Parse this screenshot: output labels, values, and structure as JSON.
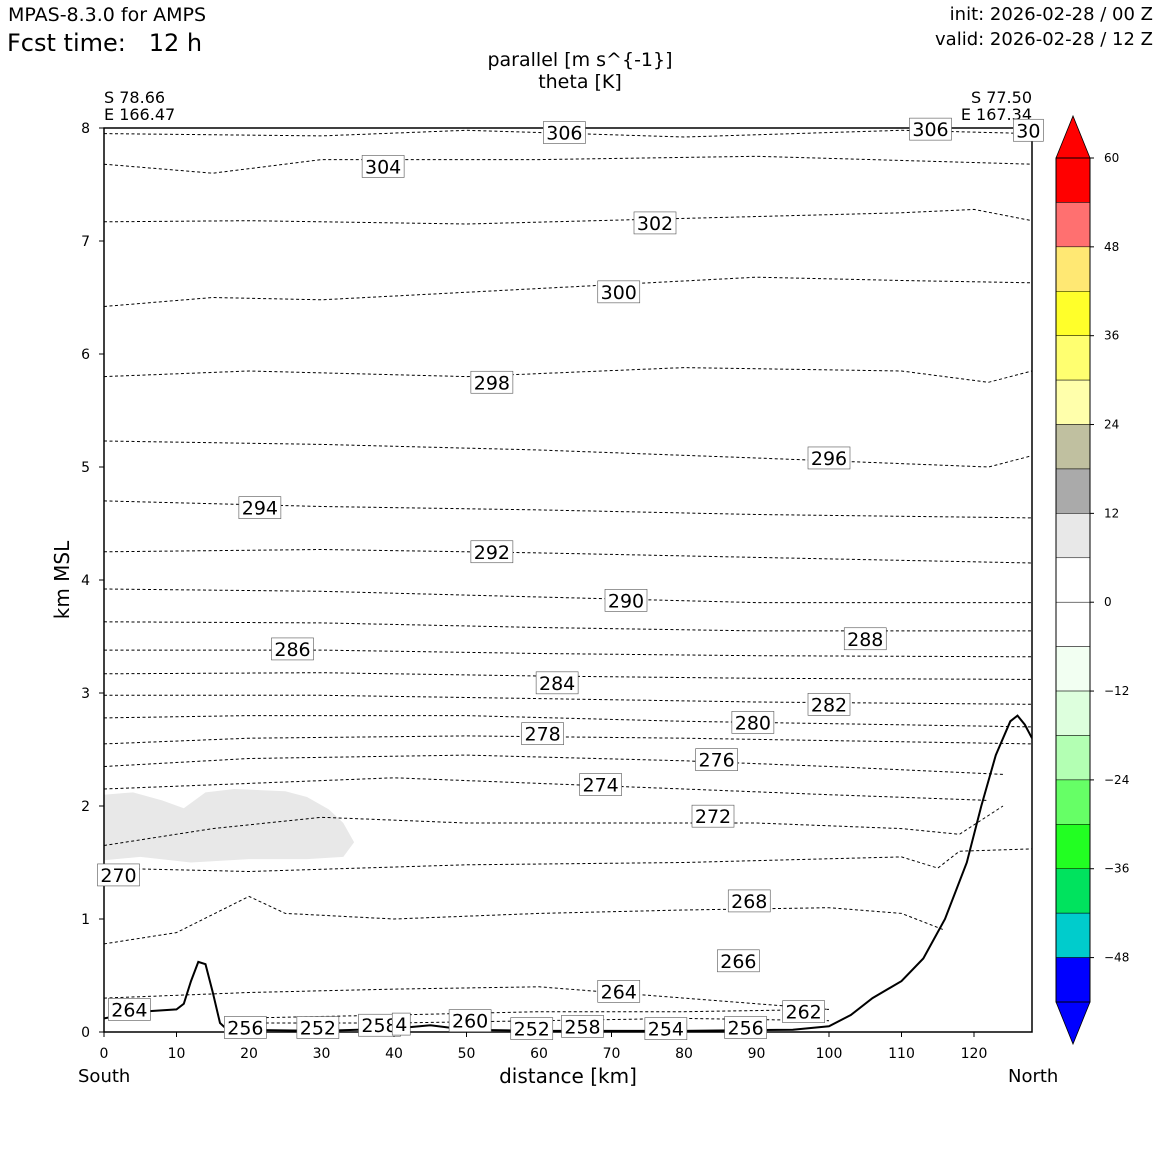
{
  "header": {
    "model": "MPAS-8.3.0 for AMPS",
    "fcst_label": "Fcst time:   12 h",
    "init": "init: 2026-02-28 / 00 Z",
    "valid": "valid: 2026-02-28 / 12 Z"
  },
  "cross_section": {
    "start": {
      "lat": "S 78.66",
      "lon": "E 166.47"
    },
    "end": {
      "lat": "S 77.50",
      "lon": "E 167.34"
    },
    "start_dir": "South",
    "end_dir": "North"
  },
  "colors": {
    "terrain": "#000000",
    "isentrope": "#000000",
    "shade_light": "#e8e8e8"
  },
  "chart_data": {
    "type": "contour",
    "title": "parallel [m s^{-1}]",
    "subtitle": "theta [K]",
    "xlabel": "distance [km]",
    "ylabel": "km MSL",
    "xlim": [
      0,
      128
    ],
    "ylim": [
      0,
      8
    ],
    "xticks": [
      0,
      10,
      20,
      30,
      40,
      50,
      60,
      70,
      80,
      90,
      100,
      110,
      120
    ],
    "yticks": [
      0,
      1,
      2,
      3,
      4,
      5,
      6,
      7,
      8
    ],
    "terrain": [
      [
        0,
        0.12
      ],
      [
        5,
        0.18
      ],
      [
        10,
        0.2
      ],
      [
        11,
        0.25
      ],
      [
        12,
        0.45
      ],
      [
        13,
        0.62
      ],
      [
        14,
        0.6
      ],
      [
        15,
        0.35
      ],
      [
        16,
        0.08
      ],
      [
        17,
        0.02
      ],
      [
        30,
        0.01
      ],
      [
        40,
        0.03
      ],
      [
        45,
        0.06
      ],
      [
        50,
        0.02
      ],
      [
        60,
        0.01
      ],
      [
        80,
        0.01
      ],
      [
        95,
        0.02
      ],
      [
        100,
        0.05
      ],
      [
        103,
        0.15
      ],
      [
        106,
        0.3
      ],
      [
        110,
        0.45
      ],
      [
        113,
        0.65
      ],
      [
        116,
        1.0
      ],
      [
        119,
        1.5
      ],
      [
        121,
        2.0
      ],
      [
        123,
        2.45
      ],
      [
        125,
        2.75
      ],
      [
        126,
        2.8
      ],
      [
        127,
        2.72
      ],
      [
        128,
        2.6
      ]
    ],
    "shaded_region": {
      "label": "12",
      "points": [
        [
          0,
          2.1
        ],
        [
          4,
          2.12
        ],
        [
          8,
          2.05
        ],
        [
          11,
          1.98
        ],
        [
          14,
          2.12
        ],
        [
          18,
          2.15
        ],
        [
          25,
          2.13
        ],
        [
          28,
          2.08
        ],
        [
          31,
          1.97
        ],
        [
          33,
          1.85
        ],
        [
          34.5,
          1.68
        ],
        [
          33,
          1.55
        ],
        [
          28,
          1.53
        ],
        [
          20,
          1.53
        ],
        [
          12,
          1.5
        ],
        [
          5,
          1.55
        ],
        [
          0,
          1.52
        ]
      ]
    },
    "isentropes": [
      {
        "theta": 270,
        "profile": [
          [
            0,
            1.45
          ],
          [
            20,
            1.42
          ],
          [
            50,
            1.48
          ],
          [
            80,
            1.5
          ],
          [
            110,
            1.55
          ],
          [
            115,
            1.45
          ],
          [
            118,
            1.6
          ],
          [
            128,
            1.62
          ]
        ]
      },
      {
        "theta": 268,
        "profile": [
          [
            0,
            0.78
          ],
          [
            10,
            0.88
          ],
          [
            20,
            1.2
          ],
          [
            25,
            1.05
          ],
          [
            40,
            1.0
          ],
          [
            60,
            1.05
          ],
          [
            80,
            1.08
          ],
          [
            100,
            1.1
          ],
          [
            110,
            1.05
          ],
          [
            116,
            0.9
          ]
        ]
      },
      {
        "theta": 264,
        "profile": [
          [
            0,
            0.3
          ],
          [
            20,
            0.35
          ],
          [
            40,
            0.38
          ],
          [
            60,
            0.4
          ],
          [
            80,
            0.3
          ],
          [
            100,
            0.2
          ]
        ]
      },
      {
        "theta": 272,
        "profile": [
          [
            0,
            1.65
          ],
          [
            15,
            1.8
          ],
          [
            30,
            1.9
          ],
          [
            50,
            1.85
          ],
          [
            70,
            1.85
          ],
          [
            90,
            1.85
          ],
          [
            110,
            1.8
          ],
          [
            118,
            1.75
          ],
          [
            124,
            2.0
          ]
        ]
      },
      {
        "theta": 274,
        "profile": [
          [
            0,
            2.15
          ],
          [
            20,
            2.2
          ],
          [
            40,
            2.25
          ],
          [
            60,
            2.2
          ],
          [
            80,
            2.15
          ],
          [
            100,
            2.1
          ],
          [
            122,
            2.05
          ]
        ]
      },
      {
        "theta": 276,
        "profile": [
          [
            0,
            2.35
          ],
          [
            20,
            2.42
          ],
          [
            50,
            2.45
          ],
          [
            80,
            2.4
          ],
          [
            100,
            2.35
          ],
          [
            124,
            2.28
          ]
        ]
      },
      {
        "theta": 278,
        "profile": [
          [
            0,
            2.55
          ],
          [
            20,
            2.6
          ],
          [
            50,
            2.62
          ],
          [
            80,
            2.6
          ],
          [
            128,
            2.55
          ]
        ]
      },
      {
        "theta": 280,
        "profile": [
          [
            0,
            2.78
          ],
          [
            20,
            2.8
          ],
          [
            50,
            2.8
          ],
          [
            80,
            2.75
          ],
          [
            128,
            2.7
          ]
        ]
      },
      {
        "theta": 282,
        "profile": [
          [
            0,
            2.98
          ],
          [
            30,
            2.98
          ],
          [
            60,
            2.95
          ],
          [
            90,
            2.92
          ],
          [
            128,
            2.9
          ]
        ]
      },
      {
        "theta": 284,
        "profile": [
          [
            0,
            3.17
          ],
          [
            30,
            3.18
          ],
          [
            60,
            3.15
          ],
          [
            90,
            3.13
          ],
          [
            128,
            3.12
          ]
        ]
      },
      {
        "theta": 286,
        "profile": [
          [
            0,
            3.38
          ],
          [
            30,
            3.38
          ],
          [
            60,
            3.35
          ],
          [
            90,
            3.33
          ],
          [
            128,
            3.32
          ]
        ]
      },
      {
        "theta": 288,
        "profile": [
          [
            0,
            3.63
          ],
          [
            30,
            3.62
          ],
          [
            60,
            3.58
          ],
          [
            90,
            3.55
          ],
          [
            128,
            3.55
          ]
        ]
      },
      {
        "theta": 290,
        "profile": [
          [
            0,
            3.92
          ],
          [
            30,
            3.9
          ],
          [
            60,
            3.85
          ],
          [
            90,
            3.8
          ],
          [
            128,
            3.8
          ]
        ]
      },
      {
        "theta": 292,
        "profile": [
          [
            0,
            4.25
          ],
          [
            30,
            4.27
          ],
          [
            60,
            4.24
          ],
          [
            90,
            4.2
          ],
          [
            128,
            4.15
          ]
        ]
      },
      {
        "theta": 294,
        "profile": [
          [
            0,
            4.7
          ],
          [
            30,
            4.65
          ],
          [
            60,
            4.62
          ],
          [
            90,
            4.58
          ],
          [
            128,
            4.55
          ]
        ]
      },
      {
        "theta": 296,
        "profile": [
          [
            0,
            5.23
          ],
          [
            30,
            5.2
          ],
          [
            60,
            5.15
          ],
          [
            90,
            5.08
          ],
          [
            122,
            5.0
          ],
          [
            128,
            5.1
          ]
        ]
      },
      {
        "theta": 298,
        "profile": [
          [
            0,
            5.8
          ],
          [
            20,
            5.85
          ],
          [
            50,
            5.8
          ],
          [
            80,
            5.88
          ],
          [
            110,
            5.85
          ],
          [
            122,
            5.75
          ],
          [
            128,
            5.85
          ]
        ]
      },
      {
        "theta": 300,
        "profile": [
          [
            0,
            6.42
          ],
          [
            15,
            6.5
          ],
          [
            30,
            6.48
          ],
          [
            60,
            6.58
          ],
          [
            90,
            6.68
          ],
          [
            110,
            6.65
          ],
          [
            128,
            6.63
          ]
        ]
      },
      {
        "theta": 302,
        "profile": [
          [
            0,
            7.17
          ],
          [
            20,
            7.18
          ],
          [
            50,
            7.15
          ],
          [
            80,
            7.2
          ],
          [
            110,
            7.25
          ],
          [
            120,
            7.28
          ],
          [
            128,
            7.18
          ]
        ]
      },
      {
        "theta": 304,
        "profile": [
          [
            0,
            7.68
          ],
          [
            15,
            7.6
          ],
          [
            30,
            7.72
          ],
          [
            60,
            7.72
          ],
          [
            90,
            7.75
          ],
          [
            128,
            7.68
          ]
        ]
      },
      {
        "theta": 306,
        "profile": [
          [
            0,
            7.95
          ],
          [
            30,
            7.93
          ],
          [
            50,
            7.98
          ],
          [
            80,
            7.92
          ],
          [
            110,
            7.98
          ],
          [
            128,
            7.95
          ]
        ]
      },
      {
        "theta": 262,
        "profile": [
          [
            17,
            0.12
          ],
          [
            40,
            0.15
          ],
          [
            60,
            0.18
          ],
          [
            80,
            0.18
          ],
          [
            100,
            0.2
          ]
        ]
      },
      {
        "theta": 260,
        "profile": [
          [
            17,
            0.08
          ],
          [
            40,
            0.08
          ],
          [
            60,
            0.1
          ],
          [
            80,
            0.12
          ],
          [
            100,
            0.1
          ]
        ]
      }
    ],
    "contour_labels": [
      {
        "text": "306",
        "x": 63.5,
        "y": 7.96
      },
      {
        "text": "306",
        "x": 114,
        "y": 7.99
      },
      {
        "text": "30",
        "x": 127.5,
        "y": 7.98
      },
      {
        "text": "304",
        "x": 38.5,
        "y": 7.66
      },
      {
        "text": "302",
        "x": 76,
        "y": 7.16
      },
      {
        "text": "300",
        "x": 71,
        "y": 6.55
      },
      {
        "text": "298",
        "x": 53.5,
        "y": 5.75
      },
      {
        "text": "296",
        "x": 100,
        "y": 5.08
      },
      {
        "text": "294",
        "x": 21.5,
        "y": 4.64
      },
      {
        "text": "292",
        "x": 53.5,
        "y": 4.25
      },
      {
        "text": "290",
        "x": 72,
        "y": 3.82
      },
      {
        "text": "288",
        "x": 105,
        "y": 3.48
      },
      {
        "text": "286",
        "x": 26,
        "y": 3.39
      },
      {
        "text": "284",
        "x": 62.5,
        "y": 3.09
      },
      {
        "text": "282",
        "x": 100,
        "y": 2.9
      },
      {
        "text": "280",
        "x": 89.5,
        "y": 2.74
      },
      {
        "text": "278",
        "x": 60.5,
        "y": 2.64
      },
      {
        "text": "276",
        "x": 84.5,
        "y": 2.41
      },
      {
        "text": "274",
        "x": 68.5,
        "y": 2.19
      },
      {
        "text": "272",
        "x": 84,
        "y": 1.91
      },
      {
        "text": "270",
        "x": 2,
        "y": 1.39
      },
      {
        "text": "268",
        "x": 89,
        "y": 1.16
      },
      {
        "text": "266",
        "x": 87.5,
        "y": 0.63
      },
      {
        "text": "264",
        "x": 71,
        "y": 0.36
      },
      {
        "text": "264",
        "x": 3.5,
        "y": 0.2
      },
      {
        "text": "262",
        "x": 96.5,
        "y": 0.18
      },
      {
        "text": "260",
        "x": 50.5,
        "y": 0.1
      },
      {
        "text": "258",
        "x": 38,
        "y": 0.06
      },
      {
        "text": "258",
        "x": 66,
        "y": 0.05
      },
      {
        "text": "256",
        "x": 19.5,
        "y": 0.04
      },
      {
        "text": "256",
        "x": 88.5,
        "y": 0.04
      },
      {
        "text": "254",
        "x": 77.5,
        "y": 0.03
      },
      {
        "text": "252",
        "x": 29.5,
        "y": 0.04
      },
      {
        "text": "252",
        "x": 59,
        "y": 0.03
      },
      {
        "text": "4",
        "x": 41,
        "y": 0.07
      }
    ],
    "colorbar": {
      "ticks": [
        60,
        48,
        36,
        24,
        12,
        0,
        -12,
        -24,
        -36,
        -48
      ],
      "tick_labels": [
        "60",
        "48",
        "36",
        "24",
        "12",
        "0",
        "−12",
        "−24",
        "−36",
        "−48"
      ],
      "bands": [
        {
          "from": 54,
          "to": 60,
          "color": "#ff0000"
        },
        {
          "from": 48,
          "to": 54,
          "color": "#ff7070"
        },
        {
          "from": 42,
          "to": 48,
          "color": "#ffe873"
        },
        {
          "from": 36,
          "to": 42,
          "color": "#ffff2a"
        },
        {
          "from": 30,
          "to": 36,
          "color": "#ffff70"
        },
        {
          "from": 24,
          "to": 30,
          "color": "#ffffab"
        },
        {
          "from": 18,
          "to": 24,
          "color": "#c0c0a0"
        },
        {
          "from": 12,
          "to": 18,
          "color": "#aaaaaa"
        },
        {
          "from": 6,
          "to": 12,
          "color": "#e8e8e8"
        },
        {
          "from": 0,
          "to": 6,
          "color": "#ffffff"
        },
        {
          "from": -6,
          "to": 0,
          "color": "#ffffff"
        },
        {
          "from": -12,
          "to": -6,
          "color": "#f2fff2"
        },
        {
          "from": -18,
          "to": -12,
          "color": "#ddffdd"
        },
        {
          "from": -24,
          "to": -18,
          "color": "#b3ffb3"
        },
        {
          "from": -30,
          "to": -24,
          "color": "#66ff66"
        },
        {
          "from": -36,
          "to": -30,
          "color": "#22ff22"
        },
        {
          "from": -42,
          "to": -36,
          "color": "#00e35e"
        },
        {
          "from": -48,
          "to": -42,
          "color": "#00cccc"
        },
        {
          "from": -54,
          "to": -48,
          "color": "#0000ff"
        }
      ],
      "over_color": "#ff0000",
      "under_color": "#0000ff"
    }
  }
}
